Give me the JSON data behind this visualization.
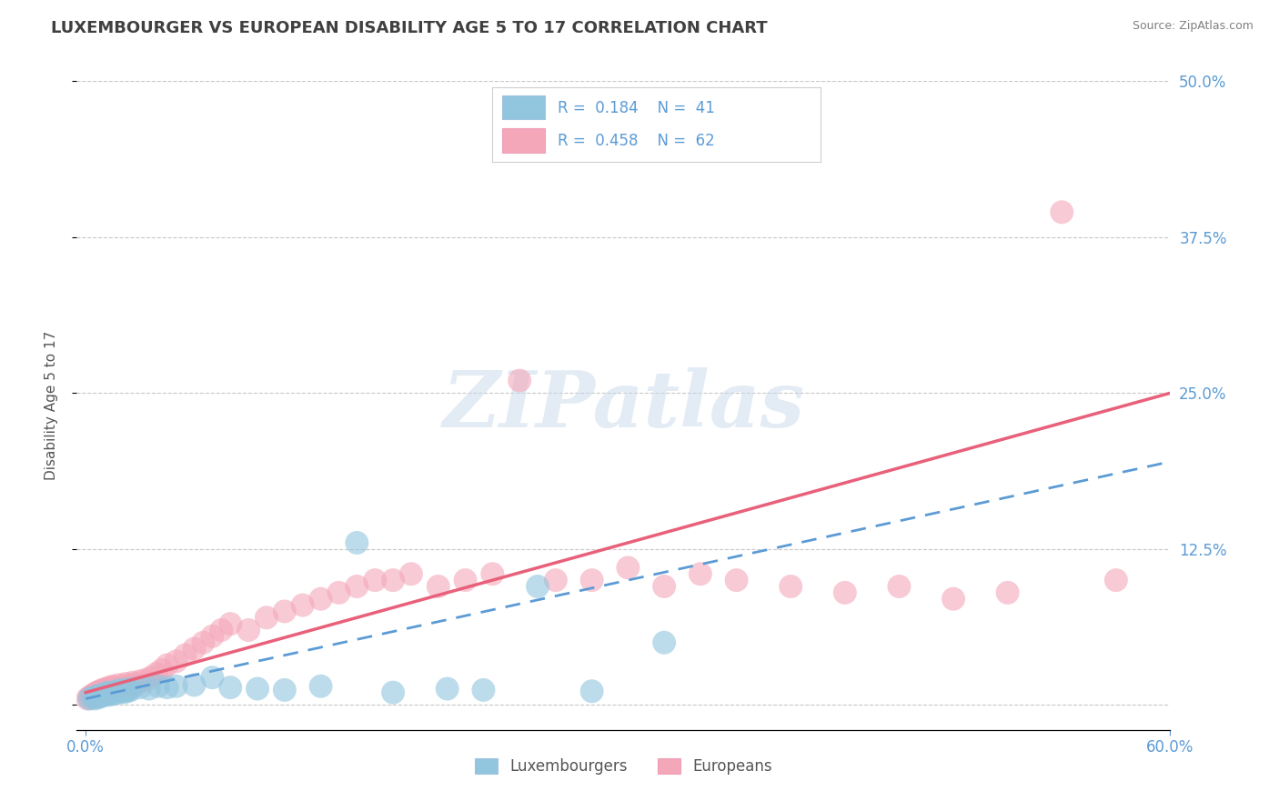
{
  "title": "LUXEMBOURGER VS EUROPEAN DISABILITY AGE 5 TO 17 CORRELATION CHART",
  "source": "Source: ZipAtlas.com",
  "ylabel": "Disability Age 5 to 17",
  "xlim": [
    -0.005,
    0.6
  ],
  "ylim": [
    -0.02,
    0.5
  ],
  "xticks": [
    0.0,
    0.6
  ],
  "xticklabels": [
    "0.0%",
    "60.0%"
  ],
  "yticks": [
    0.0,
    0.125,
    0.25,
    0.375,
    0.5
  ],
  "yticklabels_right": [
    "",
    "12.5%",
    "25.0%",
    "37.5%",
    "50.0%"
  ],
  "luxembourger_color": "#92C5DE",
  "european_color": "#F4A7B9",
  "lux_line_color": "#5B9BD5",
  "eur_line_color": "#E8607A",
  "R_lux": 0.184,
  "N_lux": 41,
  "R_eur": 0.458,
  "N_eur": 62,
  "background_color": "#FFFFFF",
  "title_color": "#404040",
  "axis_label_color": "#555555",
  "tick_label_color": "#5B9BD5",
  "grid_color": "#C8C8C8",
  "watermark": "ZIPatlas",
  "lux_x": [
    0.002,
    0.004,
    0.005,
    0.006,
    0.007,
    0.008,
    0.009,
    0.01,
    0.011,
    0.012,
    0.013,
    0.014,
    0.015,
    0.016,
    0.017,
    0.018,
    0.019,
    0.02,
    0.021,
    0.022,
    0.023,
    0.024,
    0.025,
    0.03,
    0.035,
    0.04,
    0.045,
    0.05,
    0.06,
    0.07,
    0.08,
    0.095,
    0.11,
    0.13,
    0.15,
    0.17,
    0.2,
    0.22,
    0.25,
    0.28,
    0.32
  ],
  "lux_y": [
    0.005,
    0.006,
    0.005,
    0.007,
    0.006,
    0.008,
    0.007,
    0.008,
    0.009,
    0.01,
    0.008,
    0.009,
    0.01,
    0.009,
    0.011,
    0.01,
    0.012,
    0.011,
    0.01,
    0.012,
    0.011,
    0.013,
    0.012,
    0.014,
    0.013,
    0.015,
    0.014,
    0.015,
    0.016,
    0.022,
    0.014,
    0.013,
    0.012,
    0.015,
    0.13,
    0.01,
    0.013,
    0.012,
    0.095,
    0.011,
    0.05
  ],
  "eur_x": [
    0.001,
    0.002,
    0.003,
    0.004,
    0.005,
    0.006,
    0.007,
    0.008,
    0.009,
    0.01,
    0.011,
    0.012,
    0.013,
    0.014,
    0.015,
    0.016,
    0.018,
    0.02,
    0.022,
    0.024,
    0.026,
    0.028,
    0.03,
    0.033,
    0.036,
    0.039,
    0.042,
    0.045,
    0.05,
    0.055,
    0.06,
    0.065,
    0.07,
    0.075,
    0.08,
    0.09,
    0.1,
    0.11,
    0.12,
    0.13,
    0.14,
    0.15,
    0.16,
    0.17,
    0.18,
    0.195,
    0.21,
    0.225,
    0.24,
    0.26,
    0.28,
    0.3,
    0.32,
    0.34,
    0.36,
    0.39,
    0.42,
    0.45,
    0.48,
    0.51,
    0.54,
    0.57
  ],
  "eur_y": [
    0.005,
    0.006,
    0.007,
    0.008,
    0.009,
    0.01,
    0.01,
    0.011,
    0.012,
    0.011,
    0.013,
    0.012,
    0.014,
    0.013,
    0.015,
    0.014,
    0.016,
    0.015,
    0.017,
    0.016,
    0.018,
    0.017,
    0.019,
    0.02,
    0.022,
    0.025,
    0.028,
    0.032,
    0.035,
    0.04,
    0.045,
    0.05,
    0.055,
    0.06,
    0.065,
    0.06,
    0.07,
    0.075,
    0.08,
    0.085,
    0.09,
    0.095,
    0.1,
    0.1,
    0.105,
    0.095,
    0.1,
    0.105,
    0.26,
    0.1,
    0.1,
    0.11,
    0.095,
    0.105,
    0.1,
    0.095,
    0.09,
    0.095,
    0.085,
    0.09,
    0.395,
    0.1
  ]
}
